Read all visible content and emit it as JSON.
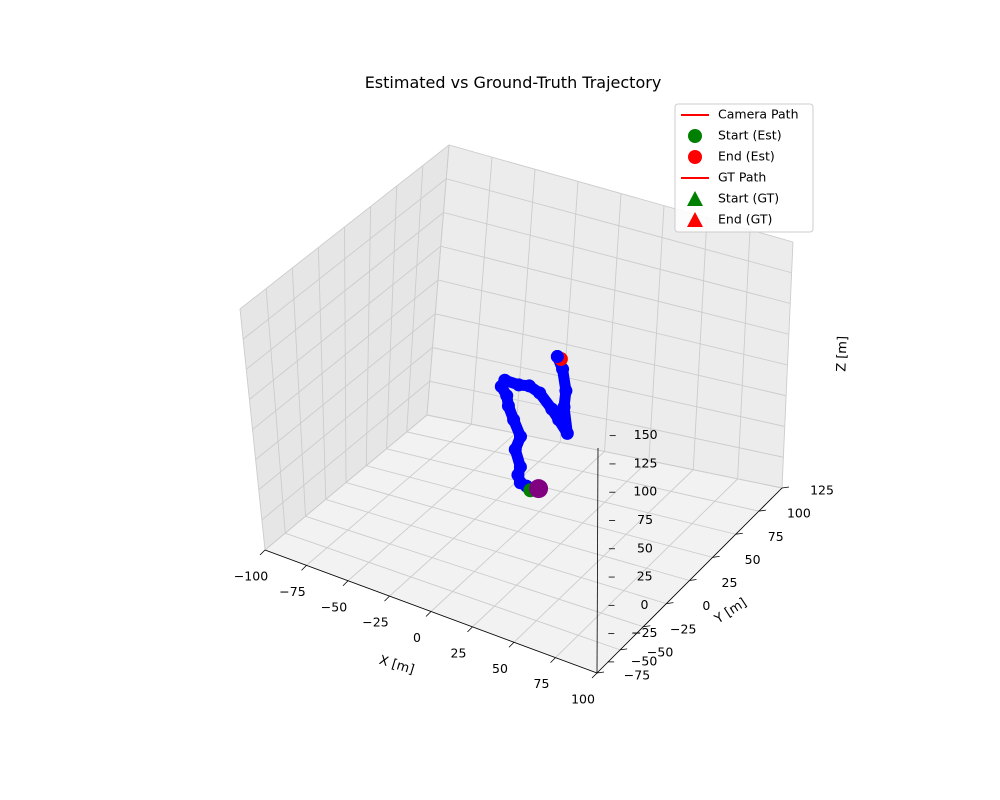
{
  "chart_data": {
    "type": "line",
    "projection": "3d",
    "title": "Estimated vs Ground-Truth Trajectory",
    "xlabel": "X [m]",
    "ylabel": "Y [m]",
    "zlabel": "Z [m]",
    "xlim": [
      -100,
      100
    ],
    "ylim": [
      -75,
      125
    ],
    "zlim": [
      -50,
      150
    ],
    "xticks": [
      "−100",
      "−75",
      "−50",
      "−25",
      "0",
      "25",
      "50",
      "75",
      "100"
    ],
    "yticks": [
      "−75",
      "−50",
      "−25",
      "0",
      "25",
      "50",
      "75",
      "100",
      "125"
    ],
    "zticks": [
      "−50",
      "−25",
      "0",
      "25",
      "50",
      "75",
      "100",
      "125",
      "150"
    ],
    "grid": true,
    "legend_position": "top-right",
    "legend": [
      {
        "label": "Camera Path",
        "marker": "line",
        "color": "#ff0000"
      },
      {
        "label": "Start (Est)",
        "marker": "circle",
        "color": "#008000"
      },
      {
        "label": "End (Est)",
        "marker": "circle",
        "color": "#ff0000"
      },
      {
        "label": "GT Path",
        "marker": "line",
        "color": "#ff0000"
      },
      {
        "label": "Start (GT)",
        "marker": "triangle",
        "color": "#008000"
      },
      {
        "label": "End (GT)",
        "marker": "triangle",
        "color": "#ff0000"
      }
    ],
    "series": [
      {
        "name": "Camera Path",
        "color": "#0000ff",
        "points": [
          [
            10,
            15,
            -2
          ],
          [
            8,
            12,
            2
          ],
          [
            5,
            15,
            5
          ],
          [
            8,
            12,
            15
          ],
          [
            5,
            12,
            28
          ],
          [
            8,
            12,
            40
          ],
          [
            4,
            12,
            52
          ],
          [
            1,
            12,
            62
          ],
          [
            0,
            12,
            70
          ],
          [
            -2,
            10,
            78
          ],
          [
            0,
            10,
            84
          ],
          [
            8,
            10,
            84
          ],
          [
            14,
            10,
            86
          ],
          [
            20,
            10,
            83
          ],
          [
            27,
            10,
            73
          ],
          [
            31,
            10,
            66
          ],
          [
            36,
            10,
            57
          ],
          [
            34,
            10,
            78
          ],
          [
            35,
            10,
            92
          ],
          [
            33,
            10,
            109
          ],
          [
            30,
            10,
            118
          ]
        ]
      }
    ],
    "markers": {
      "start_est": {
        "x": 14,
        "y": 15,
        "z": -2,
        "color": "#008000"
      },
      "end_est": {
        "x": 32,
        "y": 10,
        "z": 117,
        "color": "#ff0000"
      },
      "cluster": {
        "x": 17,
        "y": 15,
        "z": -1,
        "color": "#800080"
      }
    }
  }
}
